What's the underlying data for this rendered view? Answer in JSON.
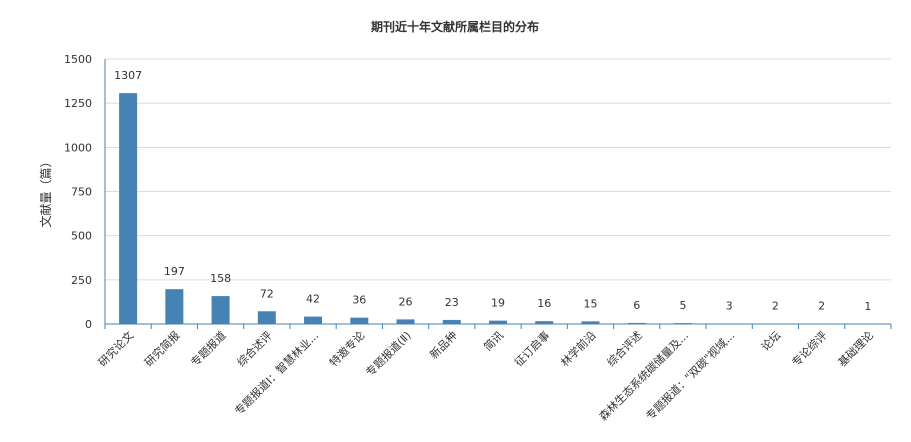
{
  "chart_data": {
    "type": "bar",
    "title": "期刊近十年文献所属栏目的分布",
    "ylabel": "文献量（篇）",
    "xlabel": "",
    "ylim": [
      0,
      1500
    ],
    "yticks": [
      0,
      250,
      500,
      750,
      1000,
      1250,
      1500
    ],
    "grid": true,
    "bar_color": "#4682b4",
    "categories": [
      "研究论文",
      "研究简报",
      "专题报道",
      "综合述评",
      "专题报道Ⅰ：智慧林业...",
      "特邀专论",
      "专题报道(Ⅱ)",
      "新品种",
      "简讯",
      "征订启事",
      "林学前沿",
      "综合评述",
      "森林生态系统碳储量及...",
      "专题报道：\"双碳\"视域...",
      "论坛",
      "专论综评",
      "基础理论"
    ],
    "values": [
      1307,
      197,
      158,
      72,
      42,
      36,
      26,
      23,
      19,
      16,
      15,
      6,
      5,
      3,
      2,
      2,
      1
    ]
  }
}
